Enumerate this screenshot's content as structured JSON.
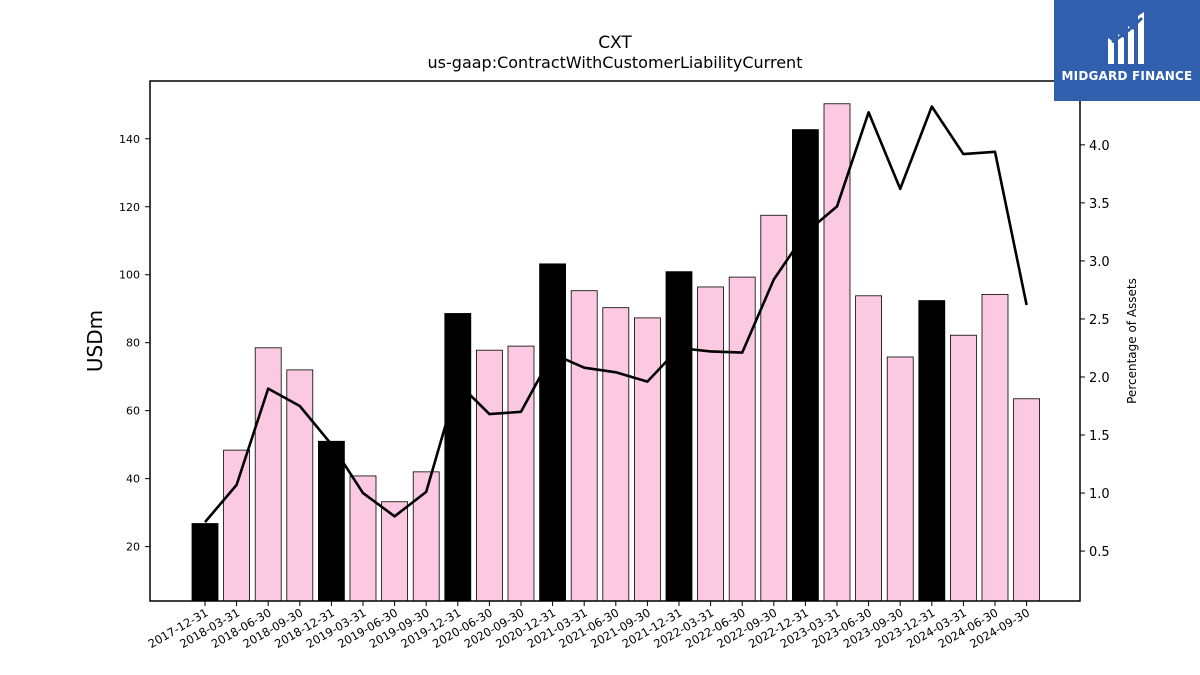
{
  "logo": {
    "text": "MIDGARD FINANCE",
    "color": "#2f5fad"
  },
  "chart_data": {
    "type": "bar",
    "title": "CXT",
    "subtitle": "us-gaap:ContractWithCustomerLiabilityCurrent",
    "ylabel": "USDm",
    "y2label": "Percentage of Assets",
    "ylim": [
      4,
      157
    ],
    "y2lim": [
      0.07,
      4.55
    ],
    "yticks": [
      20,
      40,
      60,
      80,
      100,
      120,
      140
    ],
    "y2ticks": [
      0.5,
      1.0,
      1.5,
      2.0,
      2.5,
      3.0,
      3.5,
      4.0
    ],
    "categories": [
      "2017-12-31",
      "2018-03-31",
      "2018-06-30",
      "2018-09-30",
      "2018-12-31",
      "2019-03-31",
      "2019-06-30",
      "2019-09-30",
      "2019-12-31",
      "2020-06-30",
      "2020-09-30",
      "2020-12-31",
      "2021-03-31",
      "2021-06-30",
      "2021-09-30",
      "2021-12-31",
      "2022-03-31",
      "2022-06-30",
      "2022-09-30",
      "2022-12-31",
      "2023-03-31",
      "2023-06-30",
      "2023-09-30",
      "2023-12-31",
      "2024-03-31",
      "2024-06-30",
      "2024-09-30"
    ],
    "series": [
      {
        "type": "bar",
        "values": [
          26.8,
          48.4,
          78.5,
          72.0,
          51.0,
          40.8,
          33.2,
          42.0,
          88.6,
          77.8,
          79.0,
          103.2,
          95.3,
          90.3,
          87.3,
          100.9,
          96.4,
          99.3,
          117.5,
          142.7,
          150.3,
          93.8,
          75.8,
          92.4,
          82.2,
          94.2,
          63.5
        ],
        "highlight": [
          true,
          false,
          false,
          false,
          true,
          false,
          false,
          false,
          true,
          false,
          false,
          true,
          false,
          false,
          false,
          true,
          false,
          false,
          false,
          true,
          false,
          false,
          false,
          true,
          false,
          false,
          false
        ]
      },
      {
        "type": "line",
        "axis": "right",
        "values": [
          0.75,
          1.07,
          1.9,
          1.75,
          1.42,
          1.0,
          0.8,
          1.01,
          1.95,
          1.68,
          1.7,
          2.2,
          2.08,
          2.04,
          1.96,
          2.25,
          2.22,
          2.21,
          2.84,
          3.24,
          3.47,
          4.28,
          3.62,
          4.33,
          3.92,
          3.94,
          2.62
        ]
      }
    ],
    "colors": {
      "highlight_bar": "#000000",
      "bar": "#fcc9e3",
      "line": "#000000"
    },
    "grid": false
  }
}
